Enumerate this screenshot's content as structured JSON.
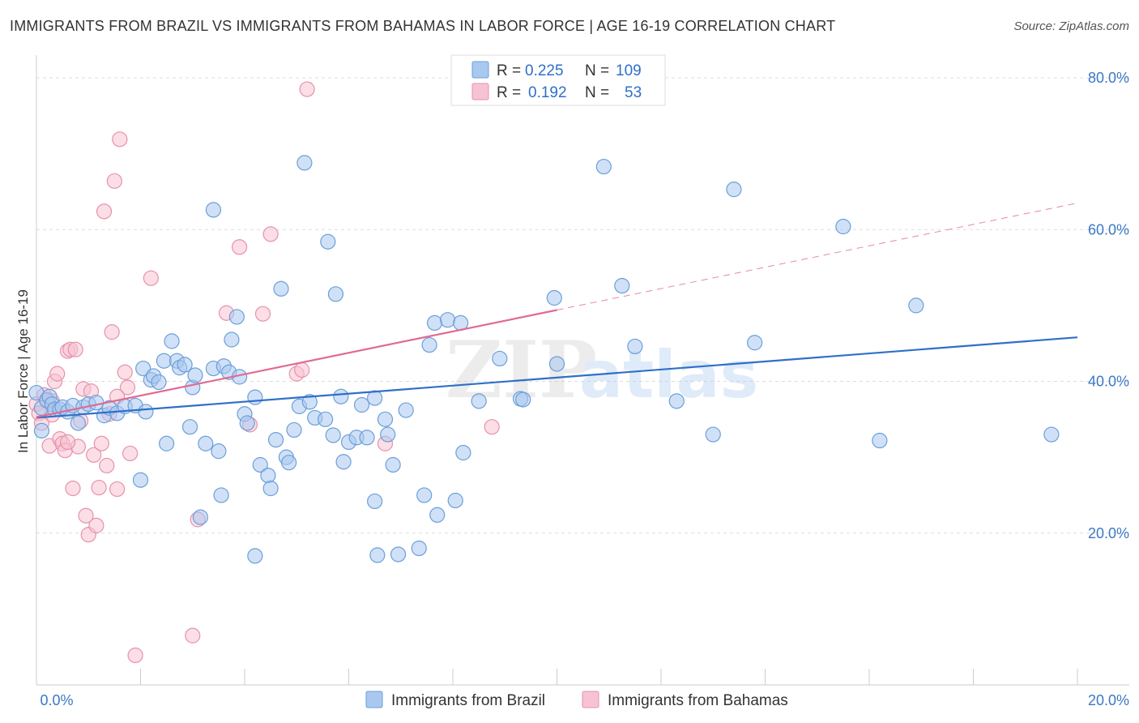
{
  "header": {
    "title": "IMMIGRANTS FROM BRAZIL VS IMMIGRANTS FROM BAHAMAS IN LABOR FORCE | AGE 16-19 CORRELATION CHART",
    "source": "Source: ZipAtlas.com"
  },
  "watermark": {
    "zip": "ZIP",
    "atlas": "atlas"
  },
  "legend": {
    "brazil": {
      "r_label": "R =",
      "r_value": "0.225",
      "n_label": "N =",
      "n_value": "109"
    },
    "bahamas": {
      "r_label": "R =",
      "r_value": "0.192",
      "n_label": "N =",
      "n_value": "53"
    }
  },
  "colors": {
    "brazil_fill": "#a9c8f0",
    "brazil_stroke": "#6b9fd9",
    "brazil_line": "#2f6fc9",
    "bahamas_fill": "#f7c3d2",
    "bahamas_stroke": "#e592ad",
    "bahamas_line": "#e06a94",
    "grid": "#dddddd",
    "tick_text": "#3a78c4"
  },
  "chart_data": {
    "type": "scatter",
    "title": "IMMIGRANTS FROM BRAZIL VS IMMIGRANTS FROM BAHAMAS IN LABOR FORCE | AGE 16-19 CORRELATION CHART",
    "xlabel": "",
    "ylabel": "In Labor Force | Age 16-19",
    "xlim": [
      0,
      20
    ],
    "ylim": [
      0,
      80
    ],
    "x_tick_labels": [
      "0.0%",
      "20.0%"
    ],
    "y_ticks": [
      20,
      40,
      60,
      80
    ],
    "y_tick_labels": [
      "20.0%",
      "40.0%",
      "60.0%",
      "80.0%"
    ],
    "grid": true,
    "legend_position": "top-center",
    "series": [
      {
        "name": "Immigrants from Brazil",
        "stats": {
          "R": 0.225,
          "N": 109
        },
        "trend": {
          "x": [
            0,
            20
          ],
          "y": [
            35.2,
            45.8
          ]
        },
        "points": [
          [
            0.0,
            38.5
          ],
          [
            0.1,
            36.5
          ],
          [
            0.1,
            33.5
          ],
          [
            0.2,
            37.5
          ],
          [
            0.25,
            38.0
          ],
          [
            0.3,
            37.0
          ],
          [
            0.35,
            36.3
          ],
          [
            0.45,
            36.3
          ],
          [
            0.5,
            36.6
          ],
          [
            0.6,
            36.0
          ],
          [
            0.7,
            36.8
          ],
          [
            0.8,
            34.5
          ],
          [
            0.9,
            36.6
          ],
          [
            1.0,
            37.0
          ],
          [
            1.15,
            37.2
          ],
          [
            1.3,
            35.5
          ],
          [
            1.4,
            36.5
          ],
          [
            1.55,
            35.8
          ],
          [
            1.7,
            36.7
          ],
          [
            1.9,
            36.8
          ],
          [
            2.0,
            27.0
          ],
          [
            2.1,
            36.0
          ],
          [
            2.05,
            41.7
          ],
          [
            2.2,
            40.2
          ],
          [
            2.25,
            40.7
          ],
          [
            2.35,
            39.9
          ],
          [
            2.5,
            31.8
          ],
          [
            2.45,
            42.7
          ],
          [
            2.6,
            45.3
          ],
          [
            2.7,
            42.7
          ],
          [
            2.75,
            41.8
          ],
          [
            2.85,
            42.2
          ],
          [
            2.95,
            34.0
          ],
          [
            3.0,
            39.2
          ],
          [
            3.05,
            40.8
          ],
          [
            3.15,
            22.1
          ],
          [
            3.25,
            31.8
          ],
          [
            3.4,
            41.7
          ],
          [
            3.4,
            62.6
          ],
          [
            3.5,
            30.8
          ],
          [
            3.55,
            25.0
          ],
          [
            3.6,
            42.0
          ],
          [
            3.7,
            41.2
          ],
          [
            3.75,
            45.5
          ],
          [
            3.85,
            48.5
          ],
          [
            3.9,
            40.6
          ],
          [
            4.0,
            35.7
          ],
          [
            4.05,
            34.5
          ],
          [
            4.2,
            37.9
          ],
          [
            4.2,
            17.0
          ],
          [
            4.3,
            29.0
          ],
          [
            4.45,
            27.6
          ],
          [
            4.5,
            25.9
          ],
          [
            4.6,
            32.3
          ],
          [
            4.7,
            52.2
          ],
          [
            4.8,
            30.0
          ],
          [
            4.85,
            29.3
          ],
          [
            4.95,
            33.6
          ],
          [
            5.05,
            36.7
          ],
          [
            5.15,
            68.8
          ],
          [
            5.25,
            37.3
          ],
          [
            5.35,
            35.2
          ],
          [
            5.55,
            35.0
          ],
          [
            5.6,
            58.4
          ],
          [
            5.7,
            32.9
          ],
          [
            5.75,
            51.5
          ],
          [
            5.85,
            38.0
          ],
          [
            5.9,
            29.4
          ],
          [
            6.0,
            32.0
          ],
          [
            6.15,
            32.6
          ],
          [
            6.25,
            36.9
          ],
          [
            6.35,
            32.6
          ],
          [
            6.5,
            37.8
          ],
          [
            6.55,
            17.1
          ],
          [
            6.5,
            24.2
          ],
          [
            6.7,
            35.0
          ],
          [
            6.75,
            33.0
          ],
          [
            6.85,
            29.0
          ],
          [
            6.95,
            17.2
          ],
          [
            7.1,
            36.2
          ],
          [
            7.35,
            18.0
          ],
          [
            7.45,
            25.0
          ],
          [
            7.55,
            44.8
          ],
          [
            7.65,
            47.7
          ],
          [
            7.7,
            22.4
          ],
          [
            7.9,
            48.1
          ],
          [
            8.05,
            24.3
          ],
          [
            8.15,
            47.7
          ],
          [
            8.2,
            30.6
          ],
          [
            8.5,
            37.4
          ],
          [
            8.9,
            43.0
          ],
          [
            9.3,
            37.7
          ],
          [
            9.35,
            37.6
          ],
          [
            9.95,
            51.0
          ],
          [
            10.0,
            42.3
          ],
          [
            10.9,
            68.3
          ],
          [
            11.25,
            52.6
          ],
          [
            11.5,
            44.6
          ],
          [
            12.3,
            37.4
          ],
          [
            13.0,
            33.0
          ],
          [
            13.4,
            65.3
          ],
          [
            13.8,
            45.1
          ],
          [
            15.5,
            60.4
          ],
          [
            16.2,
            32.2
          ],
          [
            16.9,
            50.0
          ],
          [
            19.5,
            33.0
          ]
        ]
      },
      {
        "name": "Immigrants from Bahamas",
        "stats": {
          "R": 0.192,
          "N": 53
        },
        "trend": {
          "x": [
            0,
            10
          ],
          "y": [
            35.3,
            49.4
          ]
        },
        "trend_extension": {
          "x": [
            10,
            20
          ],
          "y": [
            49.4,
            63.5
          ]
        },
        "points": [
          [
            0.0,
            37.0
          ],
          [
            0.05,
            35.8
          ],
          [
            0.1,
            34.5
          ],
          [
            0.15,
            38.2
          ],
          [
            0.2,
            37.6
          ],
          [
            0.25,
            31.5
          ],
          [
            0.3,
            37.4
          ],
          [
            0.35,
            40.0
          ],
          [
            0.4,
            41.0
          ],
          [
            0.45,
            32.4
          ],
          [
            0.5,
            31.8
          ],
          [
            0.55,
            30.9
          ],
          [
            0.6,
            44.0
          ],
          [
            0.65,
            44.2
          ],
          [
            0.7,
            25.9
          ],
          [
            0.75,
            44.2
          ],
          [
            0.8,
            31.4
          ],
          [
            0.85,
            34.8
          ],
          [
            0.9,
            39.0
          ],
          [
            0.95,
            22.3
          ],
          [
            1.0,
            19.8
          ],
          [
            1.05,
            38.7
          ],
          [
            1.1,
            30.3
          ],
          [
            1.15,
            21.0
          ],
          [
            1.2,
            26.0
          ],
          [
            1.25,
            31.8
          ],
          [
            1.3,
            62.4
          ],
          [
            1.35,
            28.9
          ],
          [
            1.4,
            35.7
          ],
          [
            1.45,
            46.5
          ],
          [
            1.5,
            66.4
          ],
          [
            1.55,
            25.8
          ],
          [
            1.6,
            71.9
          ],
          [
            1.7,
            41.2
          ],
          [
            1.75,
            39.2
          ],
          [
            1.8,
            30.5
          ],
          [
            1.9,
            3.9
          ],
          [
            2.2,
            53.6
          ],
          [
            3.0,
            6.5
          ],
          [
            3.1,
            21.8
          ],
          [
            3.65,
            49.0
          ],
          [
            3.9,
            57.7
          ],
          [
            4.1,
            34.3
          ],
          [
            4.35,
            48.9
          ],
          [
            4.5,
            59.4
          ],
          [
            5.0,
            41.0
          ],
          [
            5.1,
            41.5
          ],
          [
            5.2,
            78.5
          ],
          [
            8.75,
            34.0
          ],
          [
            6.7,
            31.8
          ],
          [
            0.3,
            35.6
          ],
          [
            0.6,
            32.0
          ],
          [
            1.55,
            38.0
          ]
        ]
      }
    ],
    "bottom_legend": [
      "Immigrants from Brazil",
      "Immigrants from Bahamas"
    ]
  }
}
